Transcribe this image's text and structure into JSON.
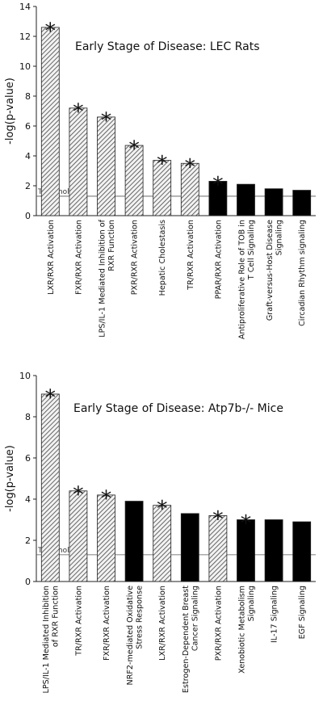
{
  "chart_data": [
    {
      "type": "bar",
      "title": "Early Stage of Disease: LEC Rats",
      "ylabel": "-log(p-value)",
      "ylim": [
        0,
        14
      ],
      "yticks": [
        0,
        2,
        4,
        6,
        8,
        10,
        12,
        14
      ],
      "threshold": {
        "label": "Threshold",
        "value": 1.3
      },
      "significance_marker": "*",
      "legend": "none",
      "grid": false,
      "categories": [
        "LXR/RXR Activation",
        "FXR/RXR Activation",
        "LPS/IL-1 Mediated Inhibition of RXR Function",
        "PXR/RXR Activation",
        "Hepatic Cholestasis",
        "TR/RXR Activation",
        "PPAR/RXR Activation",
        "Antiproliferative Role of TOB in T Cell Signaling",
        "Graft-versus-Host Disease Signaling",
        "Circadian Rhythm signaling"
      ],
      "category_lines": [
        [
          "LXR/RXR Activation"
        ],
        [
          "FXR/RXR Activation"
        ],
        [
          "LPS/IL-1 Mediated Inhibition of",
          "RXR Function"
        ],
        [
          "PXR/RXR Activation"
        ],
        [
          "Hepatic Cholestasis"
        ],
        [
          "TR/RXR Activation"
        ],
        [
          "PPAR/RXR Activation"
        ],
        [
          "Antiproliferative Role of TOB in",
          "T Cell Signaling"
        ],
        [
          "Graft-versus-Host Disease",
          "Signaling"
        ],
        [
          "Circadian Rhythm signaling"
        ]
      ],
      "values": [
        12.6,
        7.2,
        6.6,
        4.7,
        3.7,
        3.5,
        2.3,
        2.1,
        1.8,
        1.7
      ],
      "fill": [
        "hatch",
        "hatch",
        "hatch",
        "hatch",
        "hatch",
        "hatch",
        "solid",
        "solid",
        "solid",
        "solid"
      ],
      "significant": [
        true,
        true,
        true,
        true,
        true,
        true,
        true,
        false,
        false,
        false
      ]
    },
    {
      "type": "bar",
      "title": "Early Stage of Disease: Atp7b-/- Mice",
      "ylabel": "-log(p-value)",
      "ylim": [
        0,
        10
      ],
      "yticks": [
        0,
        2,
        4,
        6,
        8,
        10
      ],
      "threshold": {
        "label": "Threshold",
        "value": 1.3
      },
      "significance_marker": "*",
      "legend": "none",
      "grid": false,
      "categories": [
        "LPS/IL-1 Mediated Inhibition of RXR Function",
        "TR/RXR Activation",
        "FXR/RXR Activation",
        "NRF2-mediated Oxidative Stress Response",
        "LXR/RXR Activation",
        "Estrogen-Dependent Breast Cancer Signaling",
        "PXR/RXR Activation",
        "Xenobiotic Metabolism Signaling",
        "IL-17 Signaling",
        "EGF Signaling"
      ],
      "category_lines": [
        [
          "LPS/IL-1 Mediated Inhibition",
          "of RXR Function"
        ],
        [
          "TR/RXR Activation"
        ],
        [
          "FXR/RXR Activation"
        ],
        [
          "NRF2-mediated Oxidative",
          "Stress Response"
        ],
        [
          "LXR/RXR Activation"
        ],
        [
          "Estrogen-Dependent Breast",
          "Cancer Signaling"
        ],
        [
          "PXR/RXR Activation"
        ],
        [
          "Xenobiotic Metabolism",
          "Signaling"
        ],
        [
          "IL-17 Signaling"
        ],
        [
          "EGF Signaling"
        ]
      ],
      "values": [
        9.1,
        4.4,
        4.2,
        3.9,
        3.7,
        3.3,
        3.2,
        3.0,
        3.0,
        2.9
      ],
      "fill": [
        "hatch",
        "hatch",
        "hatch",
        "solid",
        "hatch",
        "solid",
        "hatch",
        "solid",
        "solid",
        "solid"
      ],
      "significant": [
        true,
        true,
        true,
        false,
        true,
        false,
        true,
        true,
        false,
        false
      ]
    }
  ]
}
